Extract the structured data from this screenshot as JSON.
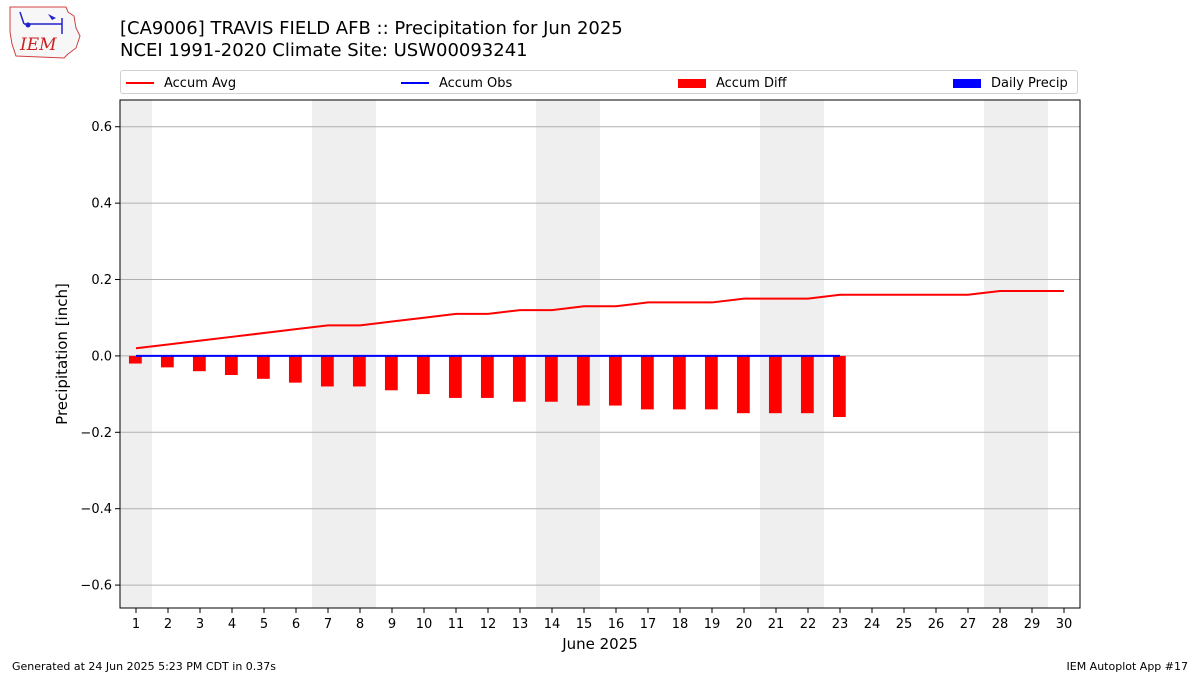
{
  "header": {
    "logo_text": "IEM",
    "title_line1": "[CA9006] TRAVIS FIELD AFB :: Precipitation for Jun 2025",
    "title_line2": "NCEI 1991-2020 Climate Site: USW00093241"
  },
  "footer": {
    "generated": "Generated at 24 Jun 2025 5:23 PM CDT in 0.37s",
    "app": "IEM Autoplot App #17"
  },
  "colors": {
    "avg": "#ff0000",
    "obs": "#0000ff",
    "diff": "#ff0000",
    "daily": "#0000ff",
    "weekend_shade": "#efefef",
    "grid": "#b0b0b0"
  },
  "chart_data": {
    "type": "bar",
    "title": "[CA9006] TRAVIS FIELD AFB :: Precipitation for Jun 2025",
    "subtitle": "NCEI 1991-2020 Climate Site: USW00093241",
    "xlabel": "June 2025",
    "ylabel": "Precipitation [inch]",
    "ylim": [
      -0.66,
      0.67
    ],
    "xlim": [
      0.5,
      30.5
    ],
    "yticks": [
      -0.6,
      -0.4,
      -0.2,
      0.0,
      0.2,
      0.4,
      0.6
    ],
    "ytick_labels": [
      "−0.6",
      "−0.4",
      "−0.2",
      "0.0",
      "0.2",
      "0.4",
      "0.6"
    ],
    "x": [
      1,
      2,
      3,
      4,
      5,
      6,
      7,
      8,
      9,
      10,
      11,
      12,
      13,
      14,
      15,
      16,
      17,
      18,
      19,
      20,
      21,
      22,
      23,
      24,
      25,
      26,
      27,
      28,
      29,
      30
    ],
    "xtick_labels": [
      "1",
      "2",
      "3",
      "4",
      "5",
      "6",
      "7",
      "8",
      "9",
      "10",
      "11",
      "12",
      "13",
      "14",
      "15",
      "16",
      "17",
      "18",
      "19",
      "20",
      "21",
      "22",
      "23",
      "24",
      "25",
      "26",
      "27",
      "28",
      "29",
      "30"
    ],
    "grid": "horizontal",
    "legend_position": "top",
    "weekend_shading": [
      [
        0.5,
        1.5
      ],
      [
        6.5,
        8.5
      ],
      [
        13.5,
        15.5
      ],
      [
        20.5,
        22.5
      ],
      [
        27.5,
        29.5
      ]
    ],
    "legend": [
      {
        "label": "Accum Avg",
        "kind": "line",
        "color": "#ff0000"
      },
      {
        "label": "Accum Obs",
        "kind": "line",
        "color": "#0000ff"
      },
      {
        "label": "Accum Diff",
        "kind": "patch",
        "color": "#ff0000"
      },
      {
        "label": "Daily Precip",
        "kind": "patch",
        "color": "#0000ff"
      }
    ],
    "series": [
      {
        "name": "Accum Avg",
        "type": "line",
        "x": [
          1,
          2,
          3,
          4,
          5,
          6,
          7,
          8,
          9,
          10,
          11,
          12,
          13,
          14,
          15,
          16,
          17,
          18,
          19,
          20,
          21,
          22,
          23,
          24,
          25,
          26,
          27,
          28,
          29,
          30
        ],
        "values": [
          0.02,
          0.03,
          0.04,
          0.05,
          0.06,
          0.07,
          0.08,
          0.08,
          0.09,
          0.1,
          0.11,
          0.11,
          0.12,
          0.12,
          0.13,
          0.13,
          0.14,
          0.14,
          0.14,
          0.15,
          0.15,
          0.15,
          0.16,
          0.16,
          0.16,
          0.16,
          0.16,
          0.17,
          0.17,
          0.17
        ]
      },
      {
        "name": "Accum Obs",
        "type": "line",
        "x": [
          1,
          2,
          3,
          4,
          5,
          6,
          7,
          8,
          9,
          10,
          11,
          12,
          13,
          14,
          15,
          16,
          17,
          18,
          19,
          20,
          21,
          22,
          23
        ],
        "values": [
          0,
          0,
          0,
          0,
          0,
          0,
          0,
          0,
          0,
          0,
          0,
          0,
          0,
          0,
          0,
          0,
          0,
          0,
          0,
          0,
          0,
          0,
          0
        ]
      },
      {
        "name": "Accum Diff",
        "type": "bar",
        "x": [
          1,
          2,
          3,
          4,
          5,
          6,
          7,
          8,
          9,
          10,
          11,
          12,
          13,
          14,
          15,
          16,
          17,
          18,
          19,
          20,
          21,
          22,
          23
        ],
        "values": [
          -0.02,
          -0.03,
          -0.04,
          -0.05,
          -0.06,
          -0.07,
          -0.08,
          -0.08,
          -0.09,
          -0.1,
          -0.11,
          -0.11,
          -0.12,
          -0.12,
          -0.13,
          -0.13,
          -0.14,
          -0.14,
          -0.14,
          -0.15,
          -0.15,
          -0.15,
          -0.16
        ]
      },
      {
        "name": "Daily Precip",
        "type": "bar",
        "x": [
          1,
          2,
          3,
          4,
          5,
          6,
          7,
          8,
          9,
          10,
          11,
          12,
          13,
          14,
          15,
          16,
          17,
          18,
          19,
          20,
          21,
          22,
          23
        ],
        "values": [
          0,
          0,
          0,
          0,
          0,
          0,
          0,
          0,
          0,
          0,
          0,
          0,
          0,
          0,
          0,
          0,
          0,
          0,
          0,
          0,
          0,
          0,
          0
        ]
      }
    ]
  }
}
